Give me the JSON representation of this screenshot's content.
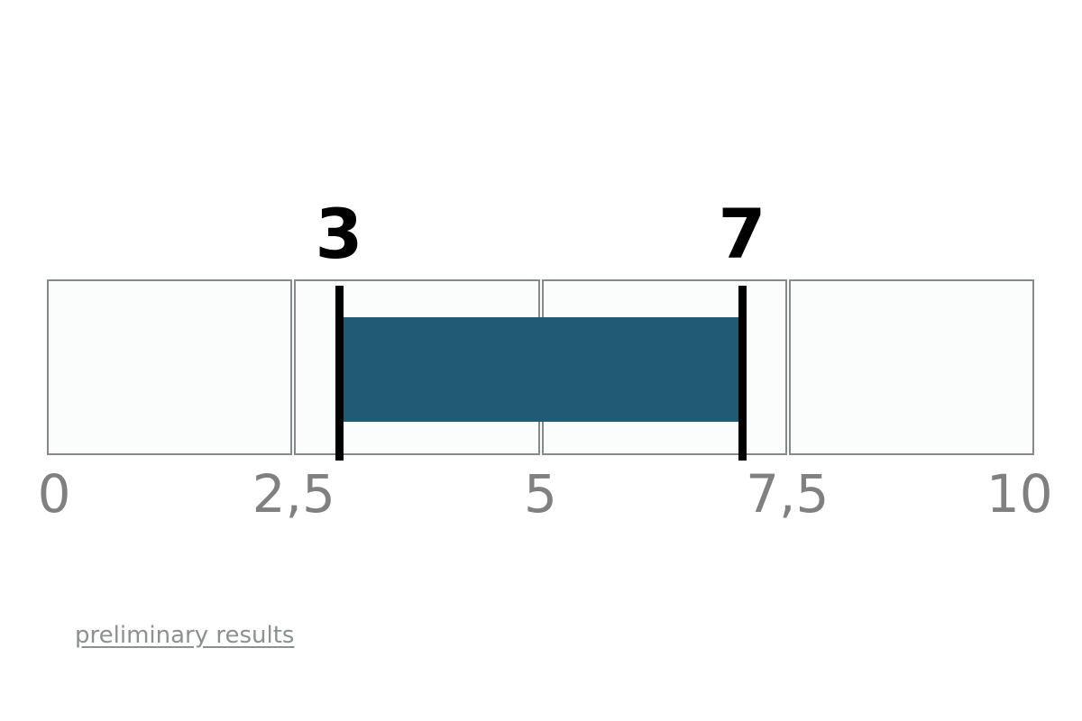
{
  "chart_data": {
    "type": "range-bar",
    "title": "",
    "axis": {
      "min": 0,
      "max": 10,
      "segment_count": 4,
      "ticks": [
        {
          "value": 0,
          "label": "0"
        },
        {
          "value": 2.5,
          "label": "2,5"
        },
        {
          "value": 5,
          "label": "5"
        },
        {
          "value": 7.5,
          "label": "7,5"
        },
        {
          "value": 10,
          "label": "10"
        }
      ],
      "grid": "segmented-boxes",
      "legend_position": "none"
    },
    "range": {
      "start": 3,
      "end": 7,
      "start_label": "3",
      "end_label": "7"
    },
    "colors": {
      "bar": "#215a73",
      "marker": "#000000",
      "segment_fill": "#fbfdfc",
      "segment_border": "#838a89",
      "tick_label": "#808080",
      "value_label": "#000000",
      "background": "#ffffff"
    }
  },
  "footer": {
    "link_label": "preliminary results",
    "link_color": "#8b9191"
  }
}
